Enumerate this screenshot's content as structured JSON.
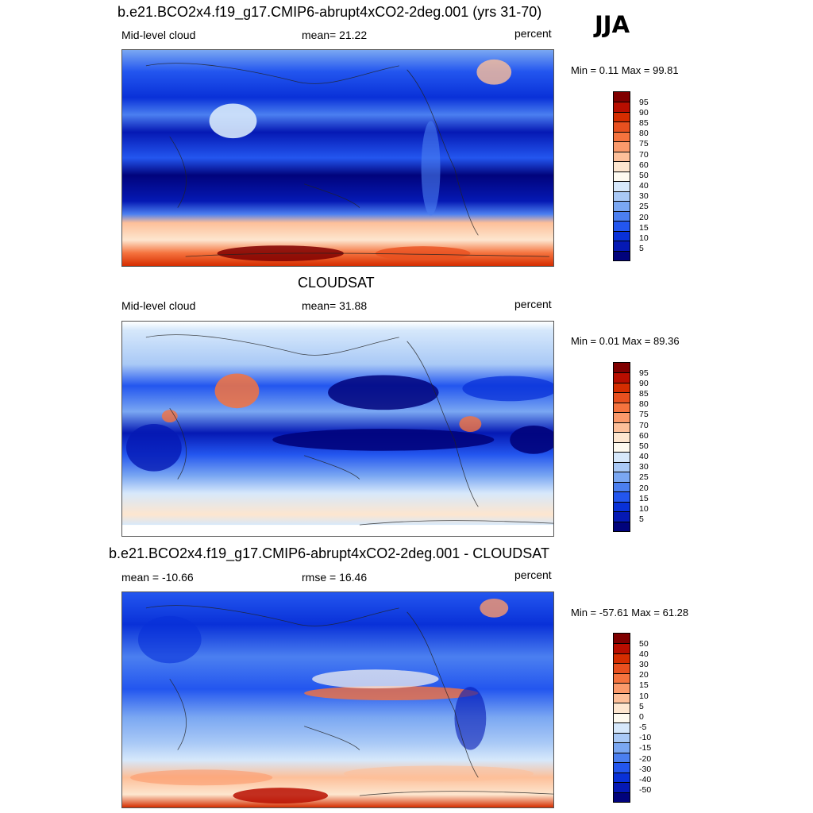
{
  "season": "JJA",
  "panels": [
    {
      "id": "model",
      "title": "b.e21.BCO2x4.f19_g17.CMIP6-abrupt4xCO2-2deg.001 (yrs 31-70)",
      "left_label": "Mid-level cloud",
      "center_label": "mean=  21.22",
      "right_label": "percent",
      "minmax": "Min =   0.11 Max =  99.81",
      "colorbar_labels": [
        "95",
        "90",
        "85",
        "80",
        "75",
        "70",
        "60",
        "50",
        "40",
        "30",
        "25",
        "20",
        "15",
        "10",
        "5"
      ]
    },
    {
      "id": "obs",
      "title": "CLOUDSAT",
      "left_label": "Mid-level cloud",
      "center_label": "mean=  31.88",
      "right_label": "percent",
      "minmax": "Min =   0.01 Max =  89.36",
      "colorbar_labels": [
        "95",
        "90",
        "85",
        "80",
        "75",
        "70",
        "60",
        "50",
        "40",
        "30",
        "25",
        "20",
        "15",
        "10",
        "5"
      ]
    },
    {
      "id": "diff",
      "title": "b.e21.BCO2x4.f19_g17.CMIP6-abrupt4xCO2-2deg.001 - CLOUDSAT",
      "left_label": "mean = -10.66",
      "center_label": "rmse =  16.46",
      "right_label": "percent",
      "minmax": "Min = -57.61 Max =  61.28",
      "colorbar_labels": [
        "50",
        "40",
        "30",
        "20",
        "15",
        "10",
        "5",
        "0",
        "-5",
        "-10",
        "-15",
        "-20",
        "-30",
        "-40",
        "-50"
      ]
    }
  ],
  "colorbar_colors": [
    "#800000",
    "#b80e00",
    "#d52d00",
    "#e8501f",
    "#f5733e",
    "#fb9a6b",
    "#fdbf99",
    "#fde6cf",
    "#fdfaf0",
    "#d6e8fb",
    "#a9c9f6",
    "#7aa7f2",
    "#4b7ff0",
    "#2356ef",
    "#0931d8",
    "#0519b4",
    "#01037c"
  ]
}
